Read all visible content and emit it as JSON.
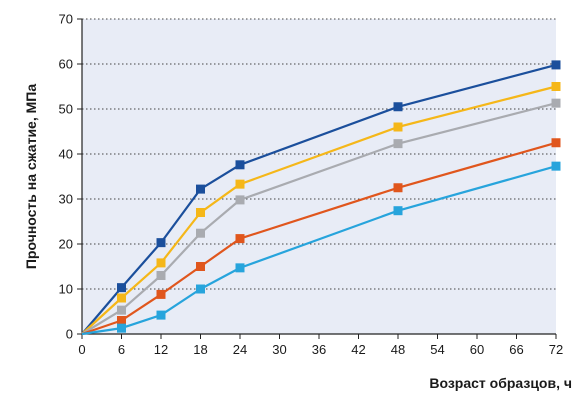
{
  "chart_data": {
    "type": "line",
    "title": "",
    "xlabel": "Возраст образцов, ч",
    "ylabel": "Прочность на сжатие, МПа",
    "xlim": [
      0,
      72
    ],
    "ylim": [
      0,
      70
    ],
    "xticks": [
      "0",
      "6",
      "12",
      "18",
      "24",
      "30",
      "36",
      "42",
      "48",
      "54",
      "60",
      "66",
      "72"
    ],
    "yticks": [
      "0",
      "10",
      "20",
      "30",
      "40",
      "50",
      "60",
      "70"
    ],
    "grid": "horizontal dotted",
    "legend": "none",
    "plot_background": "#e8ecf6",
    "series": [
      {
        "color": "#1b4f9c",
        "x": [
          0,
          6,
          12,
          18,
          24,
          48,
          72
        ],
        "y": [
          0,
          10.3,
          20.3,
          32.2,
          37.6,
          50.5,
          59.8
        ]
      },
      {
        "color": "#f5b719",
        "x": [
          0,
          6,
          12,
          18,
          24,
          48,
          72
        ],
        "y": [
          0,
          8.0,
          15.8,
          27.0,
          33.3,
          46.0,
          55.0
        ]
      },
      {
        "color": "#a9abb0",
        "x": [
          0,
          6,
          12,
          18,
          24,
          48,
          72
        ],
        "y": [
          0,
          5.3,
          13.0,
          22.4,
          29.8,
          42.3,
          51.3
        ]
      },
      {
        "color": "#e0561d",
        "x": [
          0,
          6,
          12,
          18,
          24,
          48,
          72
        ],
        "y": [
          0,
          3.0,
          8.8,
          15.0,
          21.2,
          32.5,
          42.5
        ]
      },
      {
        "color": "#27a4dc",
        "x": [
          0,
          6,
          12,
          18,
          24,
          48,
          72
        ],
        "y": [
          0,
          1.3,
          4.2,
          10.0,
          14.7,
          27.4,
          37.3
        ]
      }
    ]
  }
}
